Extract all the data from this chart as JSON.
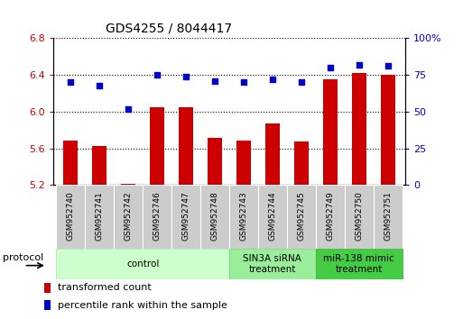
{
  "title": "GDS4255 / 8044417",
  "samples": [
    "GSM952740",
    "GSM952741",
    "GSM952742",
    "GSM952746",
    "GSM952747",
    "GSM952748",
    "GSM952743",
    "GSM952744",
    "GSM952745",
    "GSM952749",
    "GSM952750",
    "GSM952751"
  ],
  "transformed_count": [
    5.68,
    5.63,
    5.21,
    6.05,
    6.05,
    5.71,
    5.68,
    5.87,
    5.67,
    6.35,
    6.42,
    6.4
  ],
  "percentile_rank": [
    70,
    68,
    52,
    75,
    74,
    71,
    70,
    72,
    70,
    80,
    82,
    81
  ],
  "ylim_left": [
    5.2,
    6.8
  ],
  "ylim_right": [
    0,
    100
  ],
  "yticks_left": [
    5.2,
    5.6,
    6.0,
    6.4,
    6.8
  ],
  "yticks_right": [
    0,
    25,
    50,
    75,
    100
  ],
  "bar_color": "#cc0000",
  "scatter_color": "#0000cc",
  "bar_bottom": 5.2,
  "groups": [
    {
      "label": "control",
      "start": 0,
      "end": 6,
      "color": "#ccffcc",
      "edge_color": "#aaddaa"
    },
    {
      "label": "SIN3A siRNA\ntreatment",
      "start": 6,
      "end": 9,
      "color": "#99ee99",
      "edge_color": "#77cc77"
    },
    {
      "label": "miR-138 mimic\ntreatment",
      "start": 9,
      "end": 12,
      "color": "#44cc44",
      "edge_color": "#33aa33"
    }
  ],
  "legend_bar_label": "transformed count",
  "legend_scatter_label": "percentile rank within the sample",
  "protocol_label": "protocol",
  "bg_color": "#ffffff",
  "xtick_bg_color": "#cccccc",
  "xtick_bg_edge": "#ffffff"
}
